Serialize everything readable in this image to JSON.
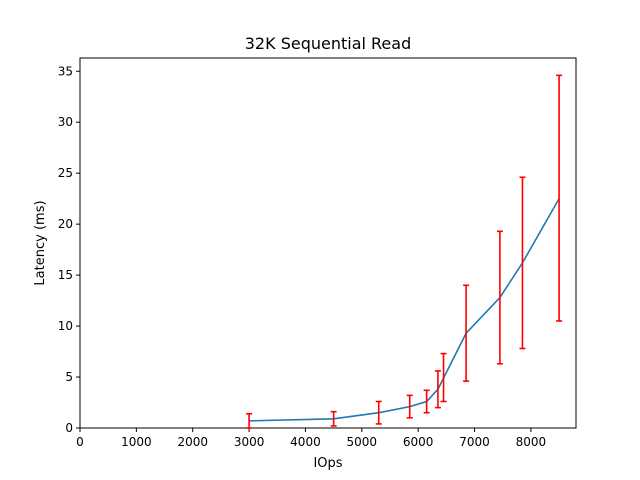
{
  "chart_data": {
    "type": "line",
    "title": "32K  Sequential Read",
    "xlabel": "IOps",
    "ylabel": "Latency (ms)",
    "xlim": [
      0,
      8800
    ],
    "ylim": [
      0,
      36.3
    ],
    "xticks": [
      0,
      1000,
      2000,
      3000,
      4000,
      5000,
      6000,
      7000,
      8000
    ],
    "yticks": [
      0,
      5,
      10,
      15,
      20,
      25,
      30,
      35
    ],
    "grid": false,
    "series": [
      {
        "color": "#1f77b4",
        "x": [
          3000,
          4500,
          5300,
          5850,
          6150,
          6350,
          6450,
          6850,
          7450,
          7850,
          8500
        ],
        "y": [
          0.7,
          0.9,
          1.5,
          2.1,
          2.6,
          3.8,
          4.9,
          9.3,
          12.8,
          16.2,
          22.5
        ],
        "yerr_low": [
          0.0,
          0.2,
          0.4,
          1.0,
          1.5,
          2.0,
          2.6,
          4.6,
          6.3,
          7.8,
          10.5
        ],
        "yerr_high": [
          1.4,
          1.6,
          2.6,
          3.2,
          3.7,
          5.6,
          7.3,
          14.0,
          19.3,
          24.6,
          34.6
        ],
        "errorbar_color": "#ff0000"
      }
    ]
  }
}
